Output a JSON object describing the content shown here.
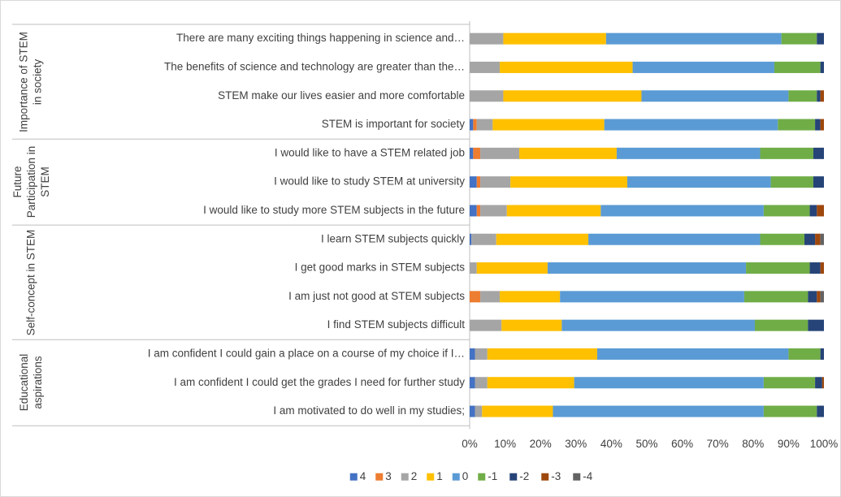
{
  "chart_data": {
    "type": "stacked-bar-horizontal",
    "groups": [
      {
        "name": "Importance of STEM in society",
        "categories": [
          "There are many exciting things happening in science and…",
          "The benefits of science and technology are greater than the…",
          "STEM make our lives easier and more comfortable",
          "STEM is important for society"
        ]
      },
      {
        "name": "Future Participation in STEM",
        "categories": [
          "I would like to have a STEM related job",
          "I would like to study STEM at university",
          "I would like to study more STEM subjects in the future"
        ]
      },
      {
        "name": "Self-concept in STEM",
        "categories": [
          "I learn STEM subjects quickly",
          "I get good marks in STEM subjects",
          "I am just not good at STEM subjects",
          "I find STEM subjects difficult"
        ]
      },
      {
        "name": "Educational aspirations",
        "categories": [
          "I am confident I could gain a place on a course of my choice if I…",
          "I am confident I could get the grades I need for further study",
          "I am motivated to do well in my studies;"
        ]
      }
    ],
    "series": [
      {
        "name": "4",
        "color": "#4472c4",
        "values": [
          0,
          0,
          0,
          1,
          1,
          2,
          2,
          0.5,
          0,
          0,
          0,
          1.5,
          1.5,
          1.5
        ]
      },
      {
        "name": "3",
        "color": "#ed7d31",
        "values": [
          0,
          0,
          0,
          1,
          2,
          1,
          1,
          0,
          0,
          3,
          0,
          0,
          0,
          0
        ]
      },
      {
        "name": "2",
        "color": "#a5a5a5",
        "values": [
          9.5,
          8.5,
          9.5,
          4.5,
          11,
          8.5,
          7.5,
          7,
          2,
          5.5,
          9,
          3.5,
          3.5,
          2
        ]
      },
      {
        "name": "1",
        "color": "#ffc000",
        "values": [
          29,
          37.5,
          39,
          31.5,
          27.5,
          33,
          26.5,
          26,
          20,
          17,
          17,
          31,
          24.5,
          20
        ]
      },
      {
        "name": "0",
        "color": "#5b9bd5",
        "values": [
          49.5,
          40,
          41.5,
          49,
          40.5,
          40.5,
          46,
          48.5,
          56,
          52,
          54.5,
          54,
          53.5,
          59.5
        ]
      },
      {
        "name": "-1",
        "color": "#70ad47",
        "values": [
          10,
          13,
          8,
          10.5,
          15,
          12,
          13,
          12.5,
          18,
          18,
          15,
          9,
          14.5,
          15
        ]
      },
      {
        "name": "-2",
        "color": "#264478",
        "values": [
          2,
          1,
          1,
          1.5,
          3,
          3,
          2,
          3,
          3,
          2.5,
          4.5,
          1,
          2,
          2
        ]
      },
      {
        "name": "-3",
        "color": "#9e480e",
        "values": [
          0,
          0,
          1,
          1,
          0,
          0,
          2,
          1.5,
          1,
          1,
          0,
          0,
          0.5,
          0
        ]
      },
      {
        "name": "-4",
        "color": "#636363",
        "values": [
          0,
          0,
          0,
          0,
          0,
          0,
          0,
          1,
          0,
          1,
          0,
          0,
          0,
          0
        ]
      }
    ],
    "xlim": [
      0,
      100
    ],
    "xticks": [
      {
        "value": 0,
        "label": "0%"
      },
      {
        "value": 10,
        "label": "10%"
      },
      {
        "value": 20,
        "label": "20%"
      },
      {
        "value": 30,
        "label": "30%"
      },
      {
        "value": 40,
        "label": "40%"
      },
      {
        "value": 50,
        "label": "50%"
      },
      {
        "value": 60,
        "label": "60%"
      },
      {
        "value": 70,
        "label": "70%"
      },
      {
        "value": 80,
        "label": "80%"
      },
      {
        "value": 90,
        "label": "90%"
      },
      {
        "value": 100,
        "label": "100%"
      }
    ],
    "legend": "bottom"
  }
}
